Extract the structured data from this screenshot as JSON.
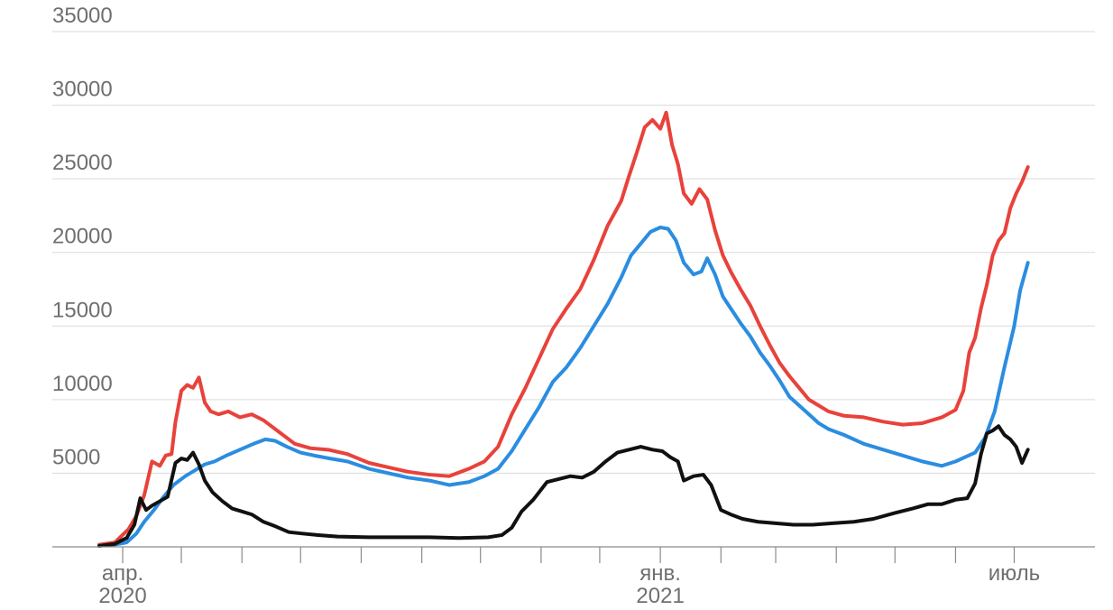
{
  "chart_data": {
    "type": "line",
    "title": "",
    "xlabel": "",
    "ylabel": "",
    "ylim": [
      0,
      35000
    ],
    "yticks": [
      5000,
      10000,
      15000,
      20000,
      25000,
      30000,
      35000
    ],
    "x_tick_labels": [
      {
        "date": "2020-04-01",
        "lines": [
          "апр.",
          "2020"
        ]
      },
      {
        "date": "2021-01-01",
        "lines": [
          "янв.",
          "2021"
        ]
      },
      {
        "date": "2021-07-01",
        "lines": [
          "июль"
        ]
      }
    ],
    "x_ticks": [
      "2020-04-01",
      "2020-05-01",
      "2020-06-01",
      "2020-07-01",
      "2020-08-01",
      "2020-09-01",
      "2020-10-01",
      "2020-11-01",
      "2020-12-01",
      "2021-01-01",
      "2021-02-01",
      "2021-03-01",
      "2021-04-01",
      "2021-05-01",
      "2021-06-01",
      "2021-07-01"
    ],
    "x_range": [
      "2020-03-20",
      "2021-07-28"
    ],
    "grid": true,
    "legend": "none",
    "series": [
      {
        "color": "#e8423b",
        "points": [
          [
            "2020-03-20",
            150
          ],
          [
            "2020-03-28",
            300
          ],
          [
            "2020-04-04",
            1200
          ],
          [
            "2020-04-08",
            2100
          ],
          [
            "2020-04-12",
            3500
          ],
          [
            "2020-04-16",
            5800
          ],
          [
            "2020-04-20",
            5500
          ],
          [
            "2020-04-23",
            6200
          ],
          [
            "2020-04-26",
            6300
          ],
          [
            "2020-04-28",
            8500
          ],
          [
            "2020-05-01",
            10600
          ],
          [
            "2020-05-04",
            11000
          ],
          [
            "2020-05-07",
            10800
          ],
          [
            "2020-05-10",
            11500
          ],
          [
            "2020-05-13",
            9800
          ],
          [
            "2020-05-16",
            9200
          ],
          [
            "2020-05-20",
            9000
          ],
          [
            "2020-05-25",
            9200
          ],
          [
            "2020-05-31",
            8800
          ],
          [
            "2020-06-06",
            9000
          ],
          [
            "2020-06-12",
            8600
          ],
          [
            "2020-06-20",
            7800
          ],
          [
            "2020-06-28",
            7000
          ],
          [
            "2020-07-06",
            6700
          ],
          [
            "2020-07-15",
            6600
          ],
          [
            "2020-07-25",
            6300
          ],
          [
            "2020-08-05",
            5700
          ],
          [
            "2020-08-15",
            5400
          ],
          [
            "2020-08-25",
            5100
          ],
          [
            "2020-09-05",
            4900
          ],
          [
            "2020-09-15",
            4800
          ],
          [
            "2020-09-25",
            5300
          ],
          [
            "2020-10-03",
            5800
          ],
          [
            "2020-10-10",
            6800
          ],
          [
            "2020-10-17",
            9000
          ],
          [
            "2020-10-24",
            10800
          ],
          [
            "2020-10-31",
            12800
          ],
          [
            "2020-11-07",
            14800
          ],
          [
            "2020-11-14",
            16200
          ],
          [
            "2020-11-21",
            17500
          ],
          [
            "2020-11-28",
            19500
          ],
          [
            "2020-12-05",
            21800
          ],
          [
            "2020-12-12",
            23500
          ],
          [
            "2020-12-16",
            25200
          ],
          [
            "2020-12-20",
            26800
          ],
          [
            "2020-12-24",
            28500
          ],
          [
            "2020-12-28",
            29000
          ],
          [
            "2021-01-01",
            28400
          ],
          [
            "2021-01-04",
            29500
          ],
          [
            "2021-01-07",
            27300
          ],
          [
            "2021-01-10",
            26000
          ],
          [
            "2021-01-13",
            24000
          ],
          [
            "2021-01-17",
            23300
          ],
          [
            "2021-01-21",
            24300
          ],
          [
            "2021-01-25",
            23600
          ],
          [
            "2021-01-29",
            21500
          ],
          [
            "2021-02-02",
            19800
          ],
          [
            "2021-02-06",
            18700
          ],
          [
            "2021-02-11",
            17500
          ],
          [
            "2021-02-16",
            16400
          ],
          [
            "2021-02-21",
            15000
          ],
          [
            "2021-02-26",
            13700
          ],
          [
            "2021-03-03",
            12500
          ],
          [
            "2021-03-08",
            11600
          ],
          [
            "2021-03-13",
            10800
          ],
          [
            "2021-03-18",
            10000
          ],
          [
            "2021-03-23",
            9600
          ],
          [
            "2021-03-28",
            9200
          ],
          [
            "2021-04-05",
            8900
          ],
          [
            "2021-04-15",
            8800
          ],
          [
            "2021-04-25",
            8500
          ],
          [
            "2021-05-05",
            8300
          ],
          [
            "2021-05-15",
            8400
          ],
          [
            "2021-05-25",
            8800
          ],
          [
            "2021-06-01",
            9300
          ],
          [
            "2021-06-05",
            10600
          ],
          [
            "2021-06-08",
            13200
          ],
          [
            "2021-06-11",
            14200
          ],
          [
            "2021-06-14",
            16200
          ],
          [
            "2021-06-17",
            17800
          ],
          [
            "2021-06-20",
            19800
          ],
          [
            "2021-06-23",
            20800
          ],
          [
            "2021-06-26",
            21300
          ],
          [
            "2021-06-29",
            23000
          ],
          [
            "2021-07-02",
            24000
          ],
          [
            "2021-07-05",
            24800
          ],
          [
            "2021-07-08",
            25800
          ]
        ]
      },
      {
        "color": "#2b8de0",
        "points": [
          [
            "2020-03-20",
            80
          ],
          [
            "2020-03-28",
            150
          ],
          [
            "2020-04-03",
            300
          ],
          [
            "2020-04-08",
            900
          ],
          [
            "2020-04-12",
            1700
          ],
          [
            "2020-04-17",
            2500
          ],
          [
            "2020-04-22",
            3400
          ],
          [
            "2020-04-27",
            4200
          ],
          [
            "2020-05-03",
            4800
          ],
          [
            "2020-05-08",
            5200
          ],
          [
            "2020-05-13",
            5600
          ],
          [
            "2020-05-18",
            5800
          ],
          [
            "2020-05-24",
            6200
          ],
          [
            "2020-05-31",
            6600
          ],
          [
            "2020-06-07",
            7000
          ],
          [
            "2020-06-13",
            7300
          ],
          [
            "2020-06-18",
            7200
          ],
          [
            "2020-06-24",
            6800
          ],
          [
            "2020-07-01",
            6400
          ],
          [
            "2020-07-08",
            6200
          ],
          [
            "2020-07-16",
            6000
          ],
          [
            "2020-07-25",
            5800
          ],
          [
            "2020-08-05",
            5300
          ],
          [
            "2020-08-15",
            5000
          ],
          [
            "2020-08-25",
            4700
          ],
          [
            "2020-09-05",
            4500
          ],
          [
            "2020-09-15",
            4200
          ],
          [
            "2020-09-25",
            4400
          ],
          [
            "2020-10-03",
            4800
          ],
          [
            "2020-10-10",
            5300
          ],
          [
            "2020-10-17",
            6500
          ],
          [
            "2020-10-24",
            8000
          ],
          [
            "2020-10-31",
            9500
          ],
          [
            "2020-11-07",
            11200
          ],
          [
            "2020-11-14",
            12200
          ],
          [
            "2020-11-21",
            13500
          ],
          [
            "2020-11-28",
            15000
          ],
          [
            "2020-12-05",
            16500
          ],
          [
            "2020-12-12",
            18300
          ],
          [
            "2020-12-17",
            19800
          ],
          [
            "2020-12-22",
            20600
          ],
          [
            "2020-12-27",
            21400
          ],
          [
            "2021-01-01",
            21700
          ],
          [
            "2021-01-05",
            21600
          ],
          [
            "2021-01-09",
            20800
          ],
          [
            "2021-01-13",
            19300
          ],
          [
            "2021-01-18",
            18500
          ],
          [
            "2021-01-22",
            18700
          ],
          [
            "2021-01-25",
            19600
          ],
          [
            "2021-01-29",
            18500
          ],
          [
            "2021-02-02",
            17000
          ],
          [
            "2021-02-06",
            16200
          ],
          [
            "2021-02-11",
            15200
          ],
          [
            "2021-02-16",
            14300
          ],
          [
            "2021-02-21",
            13200
          ],
          [
            "2021-02-26",
            12300
          ],
          [
            "2021-03-03",
            11300
          ],
          [
            "2021-03-08",
            10200
          ],
          [
            "2021-03-13",
            9600
          ],
          [
            "2021-03-18",
            9000
          ],
          [
            "2021-03-23",
            8400
          ],
          [
            "2021-03-28",
            8000
          ],
          [
            "2021-04-05",
            7600
          ],
          [
            "2021-04-15",
            7000
          ],
          [
            "2021-04-25",
            6600
          ],
          [
            "2021-05-05",
            6200
          ],
          [
            "2021-05-15",
            5800
          ],
          [
            "2021-05-25",
            5500
          ],
          [
            "2021-06-01",
            5800
          ],
          [
            "2021-06-06",
            6100
          ],
          [
            "2021-06-11",
            6400
          ],
          [
            "2021-06-16",
            7400
          ],
          [
            "2021-06-21",
            9200
          ],
          [
            "2021-06-26",
            12200
          ],
          [
            "2021-07-01",
            15000
          ],
          [
            "2021-07-04",
            17400
          ],
          [
            "2021-07-08",
            19300
          ]
        ]
      },
      {
        "color": "#111111",
        "points": [
          [
            "2020-03-20",
            60
          ],
          [
            "2020-03-28",
            200
          ],
          [
            "2020-04-03",
            600
          ],
          [
            "2020-04-07",
            1500
          ],
          [
            "2020-04-10",
            3300
          ],
          [
            "2020-04-13",
            2500
          ],
          [
            "2020-04-16",
            2800
          ],
          [
            "2020-04-20",
            3100
          ],
          [
            "2020-04-24",
            3400
          ],
          [
            "2020-04-28",
            5700
          ],
          [
            "2020-05-01",
            6000
          ],
          [
            "2020-05-04",
            5900
          ],
          [
            "2020-05-07",
            6400
          ],
          [
            "2020-05-10",
            5600
          ],
          [
            "2020-05-13",
            4500
          ],
          [
            "2020-05-17",
            3700
          ],
          [
            "2020-05-22",
            3100
          ],
          [
            "2020-05-27",
            2600
          ],
          [
            "2020-06-01",
            2400
          ],
          [
            "2020-06-06",
            2200
          ],
          [
            "2020-06-12",
            1700
          ],
          [
            "2020-06-18",
            1400
          ],
          [
            "2020-06-25",
            1000
          ],
          [
            "2020-07-02",
            900
          ],
          [
            "2020-07-10",
            800
          ],
          [
            "2020-07-20",
            700
          ],
          [
            "2020-08-05",
            650
          ],
          [
            "2020-08-20",
            650
          ],
          [
            "2020-09-05",
            650
          ],
          [
            "2020-09-20",
            600
          ],
          [
            "2020-10-05",
            650
          ],
          [
            "2020-10-12",
            800
          ],
          [
            "2020-10-17",
            1300
          ],
          [
            "2020-10-22",
            2400
          ],
          [
            "2020-10-28",
            3200
          ],
          [
            "2020-11-04",
            4400
          ],
          [
            "2020-11-10",
            4600
          ],
          [
            "2020-11-16",
            4800
          ],
          [
            "2020-11-22",
            4700
          ],
          [
            "2020-11-28",
            5100
          ],
          [
            "2020-12-04",
            5800
          ],
          [
            "2020-12-10",
            6400
          ],
          [
            "2020-12-16",
            6600
          ],
          [
            "2020-12-22",
            6800
          ],
          [
            "2020-12-28",
            6600
          ],
          [
            "2021-01-02",
            6500
          ],
          [
            "2021-01-06",
            6100
          ],
          [
            "2021-01-10",
            5800
          ],
          [
            "2021-01-13",
            4500
          ],
          [
            "2021-01-18",
            4800
          ],
          [
            "2021-01-23",
            4900
          ],
          [
            "2021-01-27",
            4200
          ],
          [
            "2021-02-01",
            2500
          ],
          [
            "2021-02-06",
            2200
          ],
          [
            "2021-02-12",
            1900
          ],
          [
            "2021-02-20",
            1700
          ],
          [
            "2021-03-01",
            1600
          ],
          [
            "2021-03-10",
            1500
          ],
          [
            "2021-03-20",
            1500
          ],
          [
            "2021-03-30",
            1600
          ],
          [
            "2021-04-10",
            1700
          ],
          [
            "2021-04-20",
            1900
          ],
          [
            "2021-05-01",
            2300
          ],
          [
            "2021-05-10",
            2600
          ],
          [
            "2021-05-18",
            2900
          ],
          [
            "2021-05-25",
            2900
          ],
          [
            "2021-06-01",
            3200
          ],
          [
            "2021-06-07",
            3300
          ],
          [
            "2021-06-11",
            4300
          ],
          [
            "2021-06-14",
            6300
          ],
          [
            "2021-06-17",
            7700
          ],
          [
            "2021-06-20",
            7900
          ],
          [
            "2021-06-23",
            8200
          ],
          [
            "2021-06-26",
            7600
          ],
          [
            "2021-06-29",
            7300
          ],
          [
            "2021-07-02",
            6800
          ],
          [
            "2021-07-05",
            5700
          ],
          [
            "2021-07-08",
            6600
          ]
        ]
      }
    ]
  }
}
